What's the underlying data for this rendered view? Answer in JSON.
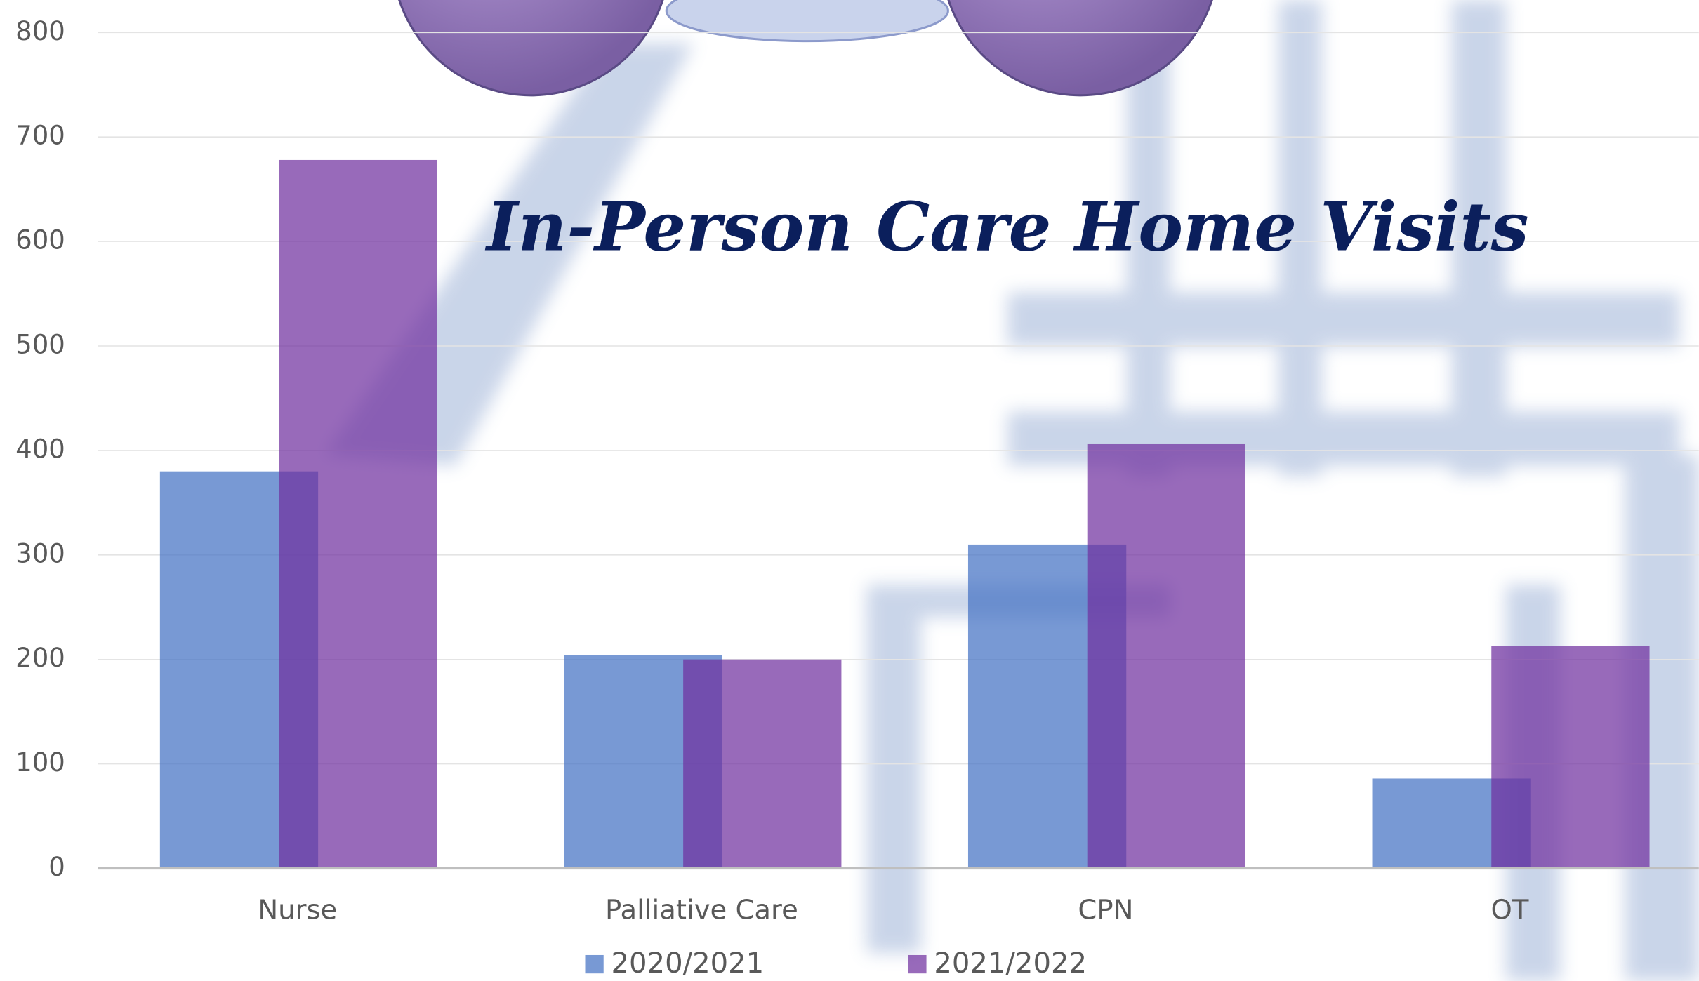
{
  "chart_data": {
    "type": "bar",
    "title": "In-Person Care Home Visits",
    "categories": [
      "Nurse",
      "Palliative Care",
      "CPN",
      "OT"
    ],
    "series": [
      {
        "name": "2020/2021",
        "color": "#4472c4",
        "values": [
          380,
          204,
          310,
          86
        ]
      },
      {
        "name": "2021/2022",
        "color": "#7030a0",
        "values": [
          678,
          200,
          406,
          213
        ]
      }
    ],
    "ylim": [
      0,
      800
    ],
    "yticks": [
      0,
      100,
      200,
      300,
      400,
      500,
      600,
      700,
      800
    ],
    "grid": true
  }
}
